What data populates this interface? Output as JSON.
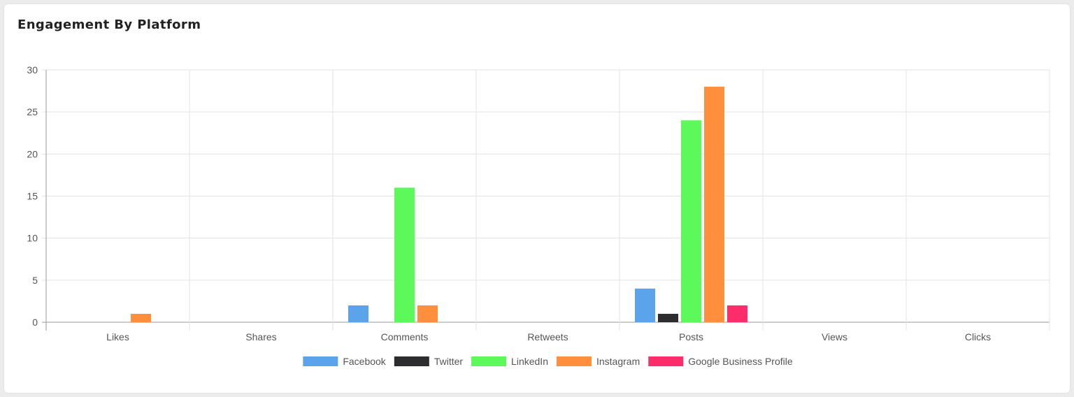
{
  "card": {
    "title": "Engagement By Platform"
  },
  "chart_data": {
    "type": "bar",
    "title": "",
    "xlabel": "",
    "ylabel": "",
    "categories": [
      "Likes",
      "Shares",
      "Comments",
      "Retweets",
      "Posts",
      "Views",
      "Clicks"
    ],
    "ylim": [
      0,
      30
    ],
    "yticks": [
      0,
      5,
      10,
      15,
      20,
      25,
      30
    ],
    "grid": true,
    "legend_position": "bottom",
    "series": [
      {
        "name": "Facebook",
        "color": "#5ba3ea",
        "values": [
          0,
          0,
          2,
          0,
          4,
          0,
          0
        ]
      },
      {
        "name": "Twitter",
        "color": "#2d2d30",
        "values": [
          0,
          0,
          0,
          0,
          1,
          0,
          0
        ]
      },
      {
        "name": "LinkedIn",
        "color": "#5df85a",
        "values": [
          0,
          0,
          16,
          0,
          24,
          0,
          0
        ]
      },
      {
        "name": "Instagram",
        "color": "#ff8f3d",
        "values": [
          1,
          0,
          2,
          0,
          28,
          0,
          0
        ]
      },
      {
        "name": "Google Business Profile",
        "color": "#fd2d6b",
        "values": [
          0,
          0,
          0,
          0,
          2,
          0,
          0
        ]
      }
    ]
  }
}
